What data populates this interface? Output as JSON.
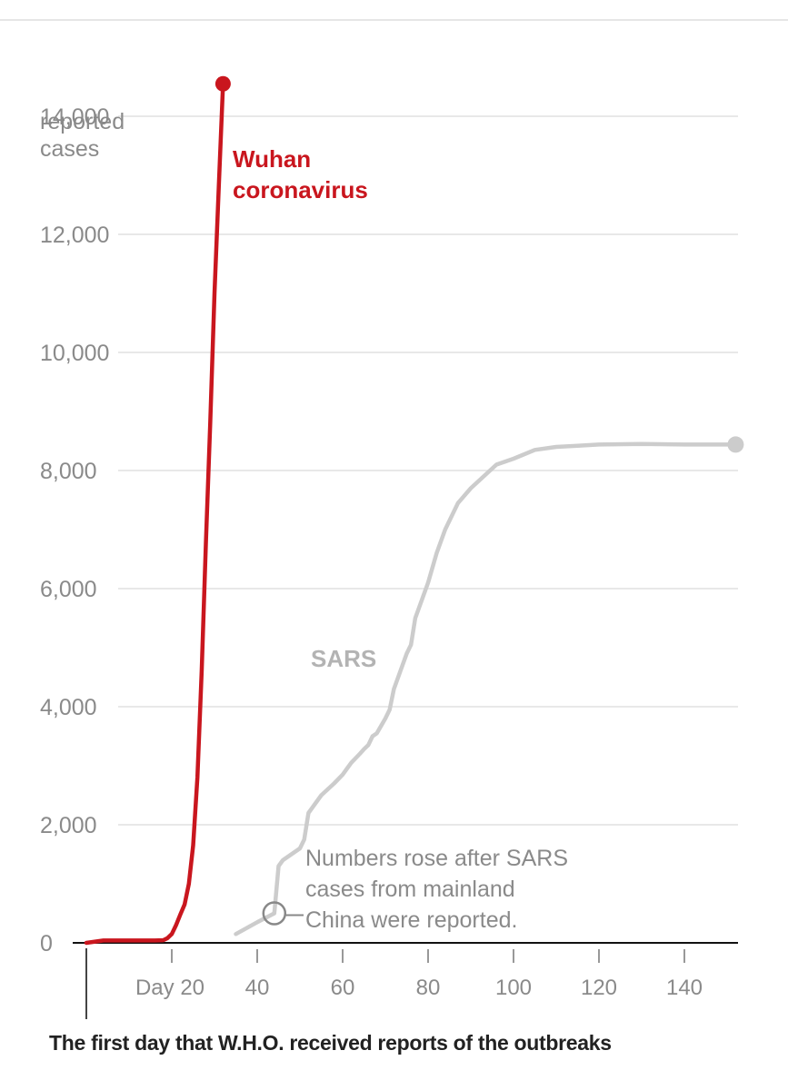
{
  "chart_data": {
    "type": "line",
    "y_axis": {
      "min": 0,
      "max": 14000,
      "ticks": [
        0,
        2000,
        4000,
        6000,
        8000,
        10000,
        12000,
        14000
      ],
      "tick_labels": [
        "0",
        "2,000",
        "4,000",
        "6,000",
        "8,000",
        "10,000",
        "12,000",
        "14,000"
      ],
      "unit_label_lines": [
        "reported",
        "cases"
      ]
    },
    "x_axis": {
      "min": 0,
      "max": 152,
      "ticks": [
        20,
        40,
        60,
        80,
        100,
        120,
        140
      ],
      "tick_labels": [
        "Day 20",
        "40",
        "60",
        "80",
        "100",
        "120",
        "140"
      ]
    },
    "series": [
      {
        "name": "Wuhan coronavirus",
        "label_lines": [
          "Wuhan",
          "coronavirus"
        ],
        "color": "#c9161e",
        "x": [
          0,
          4,
          10,
          16,
          18,
          19,
          20,
          21,
          22,
          23,
          24,
          25,
          26,
          27,
          28,
          29,
          30,
          31,
          32
        ],
        "y": [
          0,
          40,
          40,
          40,
          45,
          80,
          150,
          300,
          480,
          650,
          1000,
          1650,
          2800,
          4600,
          6800,
          8800,
          11000,
          12800,
          14550
        ]
      },
      {
        "name": "SARS",
        "label_lines": [
          "SARS"
        ],
        "color": "#cccccc",
        "x": [
          35,
          40,
          44,
          45,
          46,
          50,
          51,
          52,
          55,
          58,
          60,
          62,
          64,
          65,
          66,
          67,
          68,
          70,
          71,
          72,
          74,
          75,
          76,
          77,
          80,
          82,
          84,
          87,
          90,
          93,
          96,
          100,
          105,
          110,
          115,
          120,
          130,
          140,
          152
        ],
        "y": [
          150,
          350,
          500,
          1300,
          1400,
          1600,
          1750,
          2200,
          2500,
          2700,
          2850,
          3050,
          3200,
          3280,
          3350,
          3500,
          3550,
          3800,
          3950,
          4300,
          4700,
          4900,
          5050,
          5500,
          6100,
          6600,
          7000,
          7450,
          7700,
          7900,
          8100,
          8200,
          8350,
          8400,
          8420,
          8440,
          8450,
          8440,
          8440
        ]
      }
    ],
    "annotation": {
      "lines": [
        "Numbers rose after SARS",
        "cases from mainland",
        "China were reported."
      ],
      "x": 44,
      "y": 500
    },
    "first_day_marker_x": 0,
    "caption": "The first day that W.H.O. received reports of the outbreaks"
  }
}
